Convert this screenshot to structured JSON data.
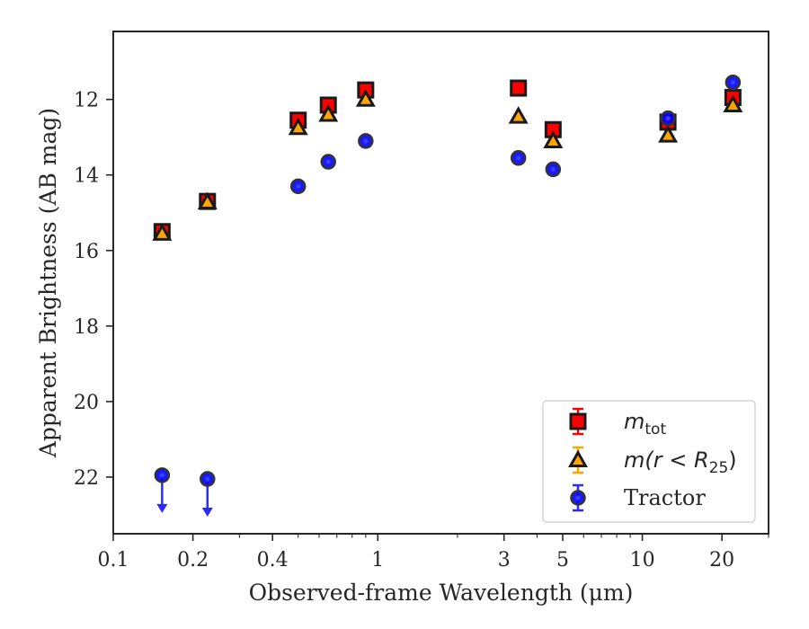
{
  "chart_data": {
    "type": "scatter",
    "title": "",
    "xlabel": "Observed-frame Wavelength (μm)",
    "ylabel": "Apparent Brightness (AB mag)",
    "xscale": "log",
    "xlim": [
      0.1,
      30
    ],
    "ylim": [
      23.5,
      10.2
    ],
    "y_inverted": true,
    "grid": false,
    "legend_position": "lower-right",
    "x_ticks": [
      0.1,
      0.2,
      0.4,
      1,
      3,
      5,
      10,
      20
    ],
    "x_tick_labels": [
      "0.1",
      "0.2",
      "0.4",
      "1",
      "3",
      "5",
      "10",
      "20"
    ],
    "y_ticks": [
      12,
      14,
      16,
      18,
      20,
      22
    ],
    "y_tick_labels": [
      "12",
      "14",
      "16",
      "18",
      "20",
      "22"
    ],
    "series": [
      {
        "name": "m_tot",
        "legend_main": "m",
        "legend_sub": "tot",
        "marker": "square",
        "color": "#ff0000",
        "edge_color": "#1a1a1a",
        "points": [
          {
            "x": 0.153,
            "y": 15.5
          },
          {
            "x": 0.227,
            "y": 14.7
          },
          {
            "x": 0.5,
            "y": 12.55
          },
          {
            "x": 0.65,
            "y": 12.15
          },
          {
            "x": 0.9,
            "y": 11.75
          },
          {
            "x": 3.4,
            "y": 11.7
          },
          {
            "x": 4.6,
            "y": 12.8
          },
          {
            "x": 12.5,
            "y": 12.6
          },
          {
            "x": 22.0,
            "y": 11.95
          }
        ]
      },
      {
        "name": "m(r < R25)",
        "legend_main": "m(r < R",
        "legend_sub": "25",
        "legend_tail": ")",
        "marker": "triangle",
        "color": "#ffa500",
        "edge_color": "#1a1a1a",
        "points": [
          {
            "x": 0.153,
            "y": 15.55
          },
          {
            "x": 0.227,
            "y": 14.72
          },
          {
            "x": 0.5,
            "y": 12.75
          },
          {
            "x": 0.65,
            "y": 12.4
          },
          {
            "x": 0.9,
            "y": 12.0
          },
          {
            "x": 3.4,
            "y": 12.45
          },
          {
            "x": 4.6,
            "y": 13.1
          },
          {
            "x": 12.5,
            "y": 12.95
          },
          {
            "x": 22.0,
            "y": 12.15
          }
        ]
      },
      {
        "name": "Tractor",
        "marker": "circle",
        "color": "#0000ff",
        "edge_color": "#333333",
        "points": [
          {
            "x": 0.153,
            "y": 21.95,
            "upper_limit": true
          },
          {
            "x": 0.227,
            "y": 22.05,
            "upper_limit": true
          },
          {
            "x": 0.5,
            "y": 14.3
          },
          {
            "x": 0.65,
            "y": 13.65
          },
          {
            "x": 0.9,
            "y": 13.1
          },
          {
            "x": 3.4,
            "y": 13.55
          },
          {
            "x": 4.6,
            "y": 13.85
          },
          {
            "x": 12.5,
            "y": 12.5
          },
          {
            "x": 22.0,
            "y": 11.55
          }
        ]
      }
    ]
  }
}
